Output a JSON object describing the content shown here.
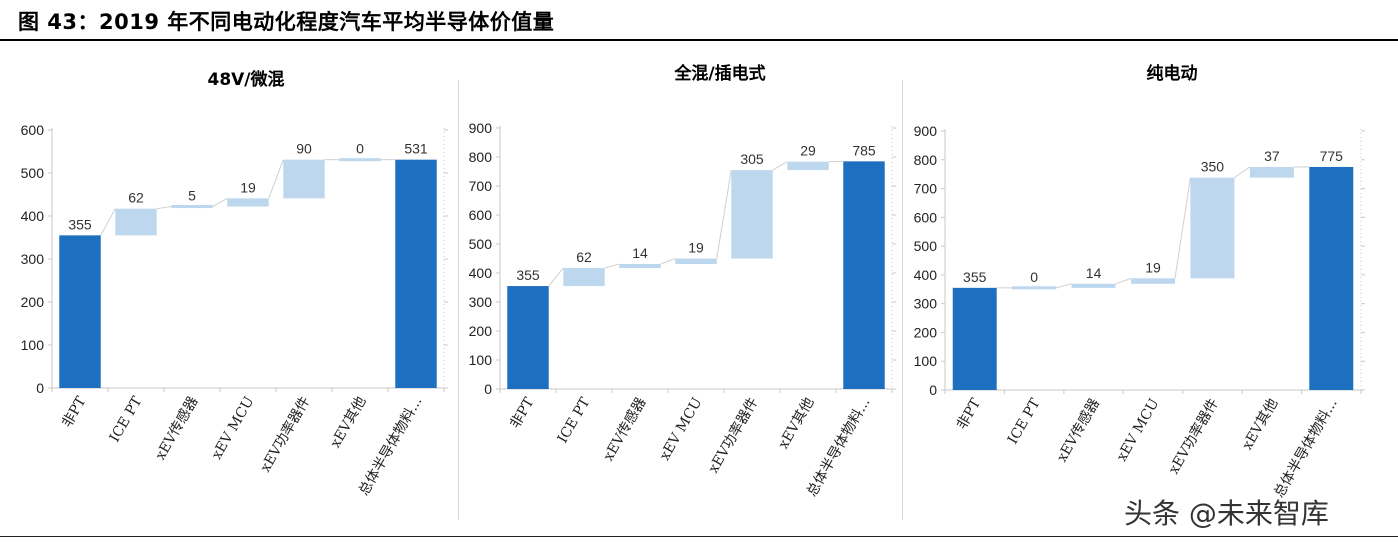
{
  "figure_title": "图 43：2019 年不同电动化程度汽车平均半导体价值量",
  "watermark": "头条 @未来智库",
  "colors": {
    "base": "#1f6fc0",
    "step": "#bcd7ee",
    "axis": "#c8c8c8",
    "connector": "#d0d0d0"
  },
  "chart_data": [
    {
      "type": "bar",
      "subtype": "waterfall",
      "title": "48V/微混",
      "categories": [
        "非PT",
        "ICE PT",
        "xEV传感器",
        "xEV MCU",
        "xEV功率器件",
        "xEV其他",
        "总体半导体物料..."
      ],
      "values": [
        355,
        62,
        5,
        19,
        90,
        0,
        531
      ],
      "ylim": [
        0,
        600
      ],
      "yticks": [
        0,
        100,
        200,
        300,
        400,
        500,
        600
      ],
      "grid": false
    },
    {
      "type": "bar",
      "subtype": "waterfall",
      "title": "全混/插电式",
      "categories": [
        "非PT",
        "ICE PT",
        "xEV传感器",
        "xEV MCU",
        "xEV功率器件",
        "xEV其他",
        "总体半导体物料..."
      ],
      "values": [
        355,
        62,
        14,
        19,
        305,
        29,
        785
      ],
      "ylim": [
        0,
        900
      ],
      "yticks": [
        0,
        100,
        200,
        300,
        400,
        500,
        600,
        700,
        800,
        900
      ],
      "grid": false
    },
    {
      "type": "bar",
      "subtype": "waterfall",
      "title": "纯电动",
      "categories": [
        "非PT",
        "ICE PT",
        "xEV传感器",
        "xEV MCU",
        "xEV功率器件",
        "xEV其他",
        "总体半导体物料..."
      ],
      "values": [
        355,
        0,
        14,
        19,
        350,
        37,
        775
      ],
      "ylim": [
        0,
        900
      ],
      "yticks": [
        0,
        100,
        200,
        300,
        400,
        500,
        600,
        700,
        800,
        900
      ],
      "grid": false
    }
  ]
}
